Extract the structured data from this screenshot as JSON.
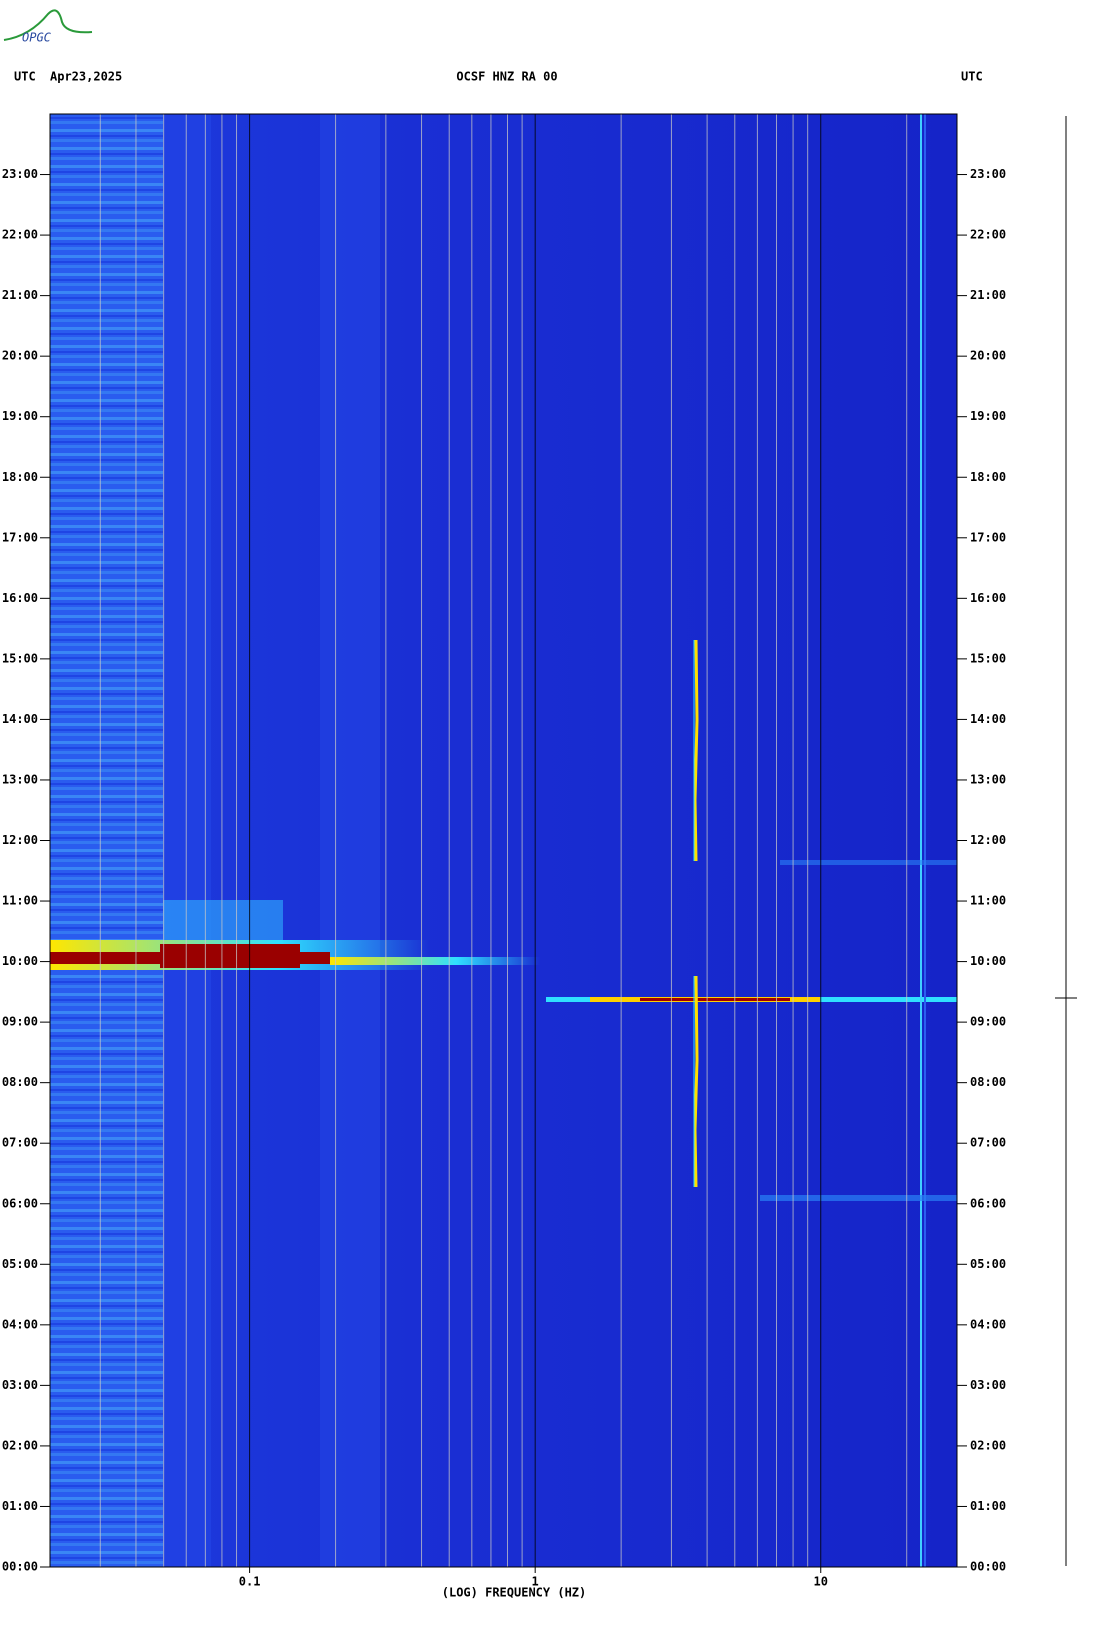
{
  "logo": "OPGC",
  "chart_data": {
    "type": "spectrogram",
    "title": "OCSF HNZ RA 00",
    "date": "Apr23,2025",
    "left_axis_label": "UTC",
    "right_axis_label": "UTC",
    "xlabel": "(LOG) FREQUENCY (HZ)",
    "xscale": "log",
    "xlim": [
      0.02,
      30
    ],
    "xticks": [
      0.1,
      1,
      10
    ],
    "xgrid": [
      0.03,
      0.04,
      0.05,
      0.06,
      0.07,
      0.08,
      0.09,
      0.1,
      0.2,
      0.3,
      0.4,
      0.5,
      0.6,
      0.7,
      0.8,
      0.9,
      1,
      2,
      3,
      4,
      5,
      6,
      7,
      8,
      9,
      10,
      20
    ],
    "ylim": [
      0,
      24
    ],
    "yticks": [
      {
        "value": 0,
        "label": "00:00"
      },
      {
        "value": 1,
        "label": "01:00"
      },
      {
        "value": 2,
        "label": "02:00"
      },
      {
        "value": 3,
        "label": "03:00"
      },
      {
        "value": 4,
        "label": "04:00"
      },
      {
        "value": 5,
        "label": "05:00"
      },
      {
        "value": 6,
        "label": "06:00"
      },
      {
        "value": 7,
        "label": "07:00"
      },
      {
        "value": 8,
        "label": "08:00"
      },
      {
        "value": 9,
        "label": "09:00"
      },
      {
        "value": 10,
        "label": "10:00"
      },
      {
        "value": 11,
        "label": "11:00"
      },
      {
        "value": 12,
        "label": "12:00"
      },
      {
        "value": 13,
        "label": "13:00"
      },
      {
        "value": 14,
        "label": "14:00"
      },
      {
        "value": 15,
        "label": "15:00"
      },
      {
        "value": 16,
        "label": "16:00"
      },
      {
        "value": 17,
        "label": "17:00"
      },
      {
        "value": 18,
        "label": "18:00"
      },
      {
        "value": 19,
        "label": "19:00"
      },
      {
        "value": 20,
        "label": "20:00"
      },
      {
        "value": 21,
        "label": "21:00"
      },
      {
        "value": 22,
        "label": "22:00"
      },
      {
        "value": 23,
        "label": "23:00"
      }
    ],
    "grid_color": "#c8c8c8",
    "decade_grid_color": "#000000"
  }
}
